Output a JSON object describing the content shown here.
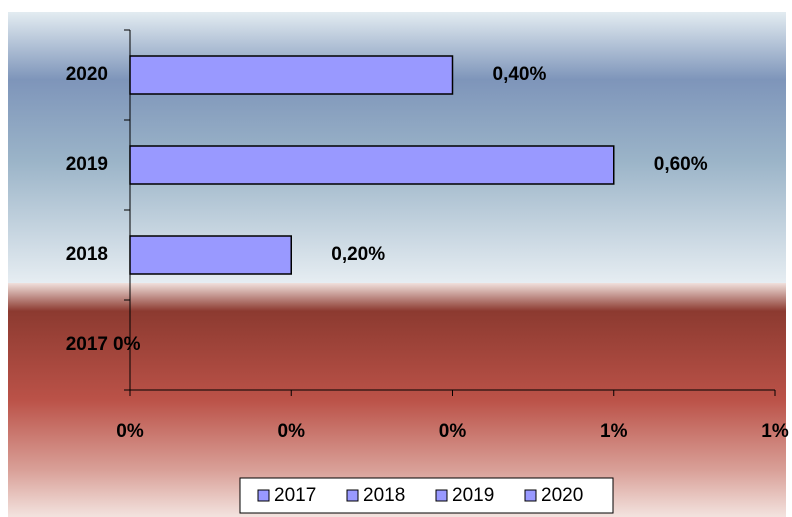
{
  "chart_data": {
    "type": "hbar",
    "categories": [
      "2017",
      "2018",
      "2019",
      "2020"
    ],
    "values": [
      0,
      0.2,
      0.6,
      0.4
    ],
    "value_labels": [
      "0%",
      "0,20%",
      "0,60%",
      "0,40%"
    ],
    "color": "#9999ff",
    "xlim": [
      0,
      0.8
    ],
    "xticks": [
      {
        "value": 0,
        "label": "0%"
      },
      {
        "value": 0.2,
        "label": "0%"
      },
      {
        "value": 0.4,
        "label": "0%"
      },
      {
        "value": 0.6,
        "label": "1%"
      },
      {
        "value": 0.8,
        "label": "1%"
      }
    ],
    "legend": "bottom"
  }
}
